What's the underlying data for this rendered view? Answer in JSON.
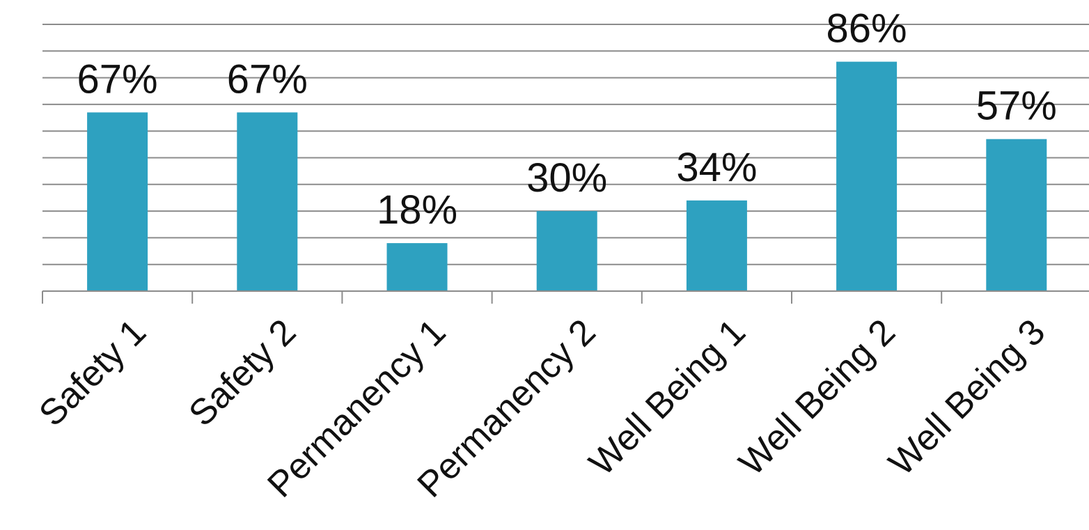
{
  "chart_data": {
    "type": "bar",
    "categories": [
      "Safety 1",
      "Safety 2",
      "Permanency 1",
      "Permanency 2",
      "Well Being 1",
      "Well Being 2",
      "Well Being 3"
    ],
    "values": [
      67,
      67,
      18,
      30,
      34,
      86,
      57
    ],
    "data_labels": [
      "67%",
      "67%",
      "18%",
      "30%",
      "34%",
      "86%",
      "57%"
    ],
    "ylim": [
      0,
      100
    ],
    "y_unit": "%",
    "gridlines": true,
    "gridline_step": 10,
    "y_axis_labels_shown": false,
    "legend": "none",
    "bar_color": "#2EA1C0"
  }
}
